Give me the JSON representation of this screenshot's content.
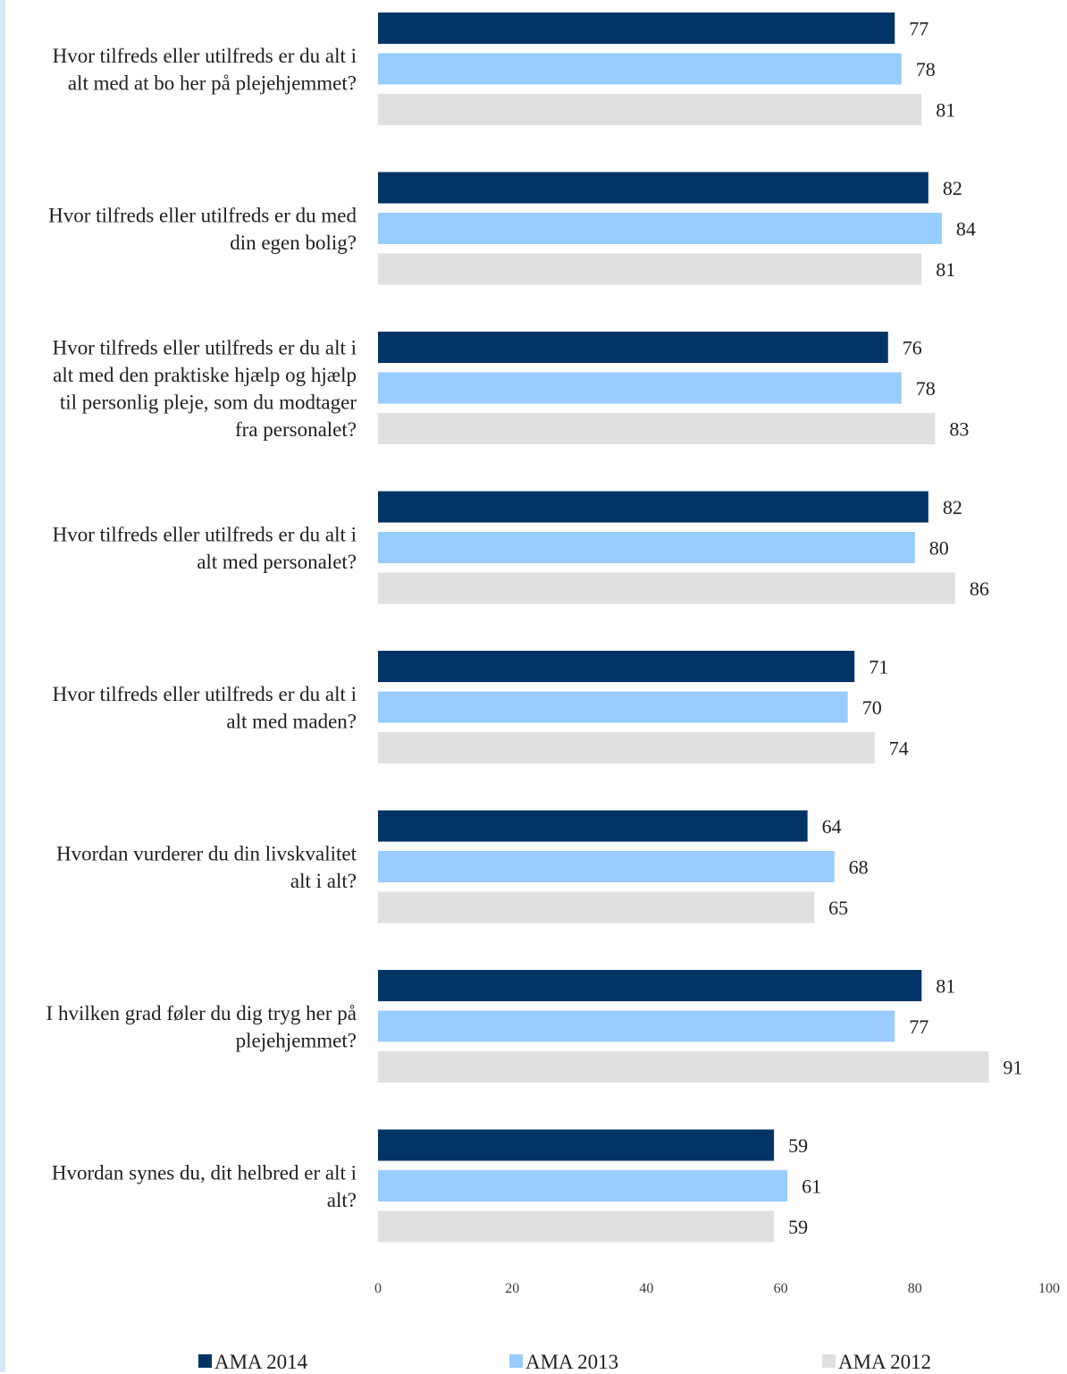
{
  "chart_data": {
    "type": "bar",
    "orientation": "horizontal",
    "categories": [
      [
        "Hvor tilfreds eller utilfreds er du alt i",
        "alt med at bo her på plejehjemmet?"
      ],
      [
        "Hvor tilfreds eller utilfreds er du med",
        "din egen bolig?"
      ],
      [
        "Hvor tilfreds eller utilfreds er du alt i",
        "alt med den praktiske hjælp og hjælp",
        "til personlig pleje, som du modtager",
        "fra personalet?"
      ],
      [
        "Hvor tilfreds eller utilfreds er du alt i",
        "alt med personalet?"
      ],
      [
        "Hvor tilfreds eller utilfreds er du alt i",
        "alt med maden?"
      ],
      [
        "Hvordan vurderer du din livskvalitet",
        "alt i alt?"
      ],
      [
        "I hvilken grad føler du dig tryg her på",
        "plejehjemmet?"
      ],
      [
        "Hvordan synes du, dit helbred er alt i",
        "alt?"
      ]
    ],
    "series": [
      {
        "name": "AMA 2014",
        "color": "#003366",
        "values": [
          77,
          82,
          76,
          82,
          71,
          64,
          81,
          59
        ]
      },
      {
        "name": "AMA 2013",
        "color": "#99ccff",
        "values": [
          78,
          84,
          78,
          80,
          70,
          68,
          77,
          61
        ]
      },
      {
        "name": "AMA 2012",
        "color": "#e0e0e0",
        "values": [
          81,
          81,
          83,
          86,
          74,
          65,
          91,
          59
        ]
      }
    ],
    "xlim": [
      0,
      100
    ],
    "xticks": [
      0,
      20,
      40,
      60,
      80,
      100
    ],
    "grid": false,
    "legend_position": "bottom"
  }
}
